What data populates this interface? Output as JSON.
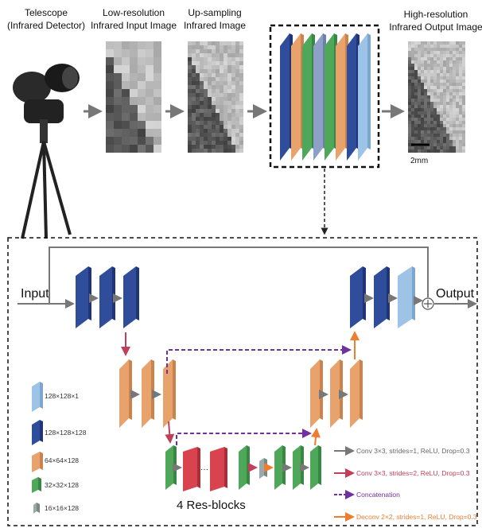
{
  "top": {
    "stages": [
      {
        "lines": [
          "Telescope",
          "(Infrared Detector)"
        ]
      },
      {
        "lines": [
          "Low-resolution",
          "Infrared Input Image"
        ]
      },
      {
        "lines": [
          "Up-sampling",
          "Infrared Image"
        ]
      },
      {
        "lines": [
          "High-resolution",
          "Infrared Output Image"
        ]
      }
    ],
    "scale_bar": "2mm"
  },
  "network": {
    "input": "Input",
    "output": "Output",
    "res_blocks": "4 Res-blocks",
    "layer_legend": [
      "128×128×1",
      "128×128×128",
      "64×64×128",
      "32×32×128",
      "16×16×128"
    ],
    "arrow_legend": [
      "Conv 3×3,  strides=1, ReLU, Drop=0.3",
      "Conv 3×3,  strides=2, ReLU, Drop=0.3",
      "Concatenation",
      "Deconv 2×2,  strides=1, ReLU, Drop=0.3"
    ]
  }
}
